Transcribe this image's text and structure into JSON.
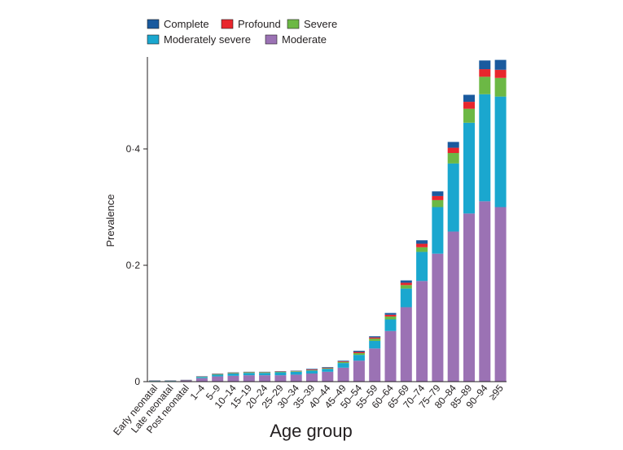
{
  "chart_data": {
    "type": "bar",
    "stacked": true,
    "xlabel": "Age group",
    "ylabel": "Prevalence",
    "ylim": [
      0,
      0.56
    ],
    "yticks": [
      0,
      0.2,
      0.4
    ],
    "ytick_labels": [
      "0",
      "0·2",
      "0·4"
    ],
    "legend_position": "top-left",
    "categories": [
      "Early neonatal",
      "Late neonatal",
      "Post neonatal",
      "1–4",
      "5–9",
      "10–14",
      "15–19",
      "20–24",
      "25–29",
      "30–34",
      "35–39",
      "40–44",
      "45–49",
      "50–54",
      "55–59",
      "60–64",
      "65–69",
      "70–74",
      "75–79",
      "80–84",
      "85–89",
      "90–94",
      "≥95"
    ],
    "series": [
      {
        "name": "Moderate",
        "color": "#9b72b4",
        "values": [
          0.001,
          0.001,
          0.002,
          0.006,
          0.009,
          0.01,
          0.011,
          0.011,
          0.011,
          0.012,
          0.014,
          0.017,
          0.024,
          0.036,
          0.057,
          0.087,
          0.128,
          0.173,
          0.22,
          0.258,
          0.289,
          0.31,
          0.3
        ]
      },
      {
        "name": "Moderately severe",
        "color": "#1aa7cf",
        "values": [
          0.0005,
          0.0005,
          0.0005,
          0.002,
          0.003,
          0.004,
          0.004,
          0.004,
          0.005,
          0.005,
          0.005,
          0.005,
          0.008,
          0.01,
          0.013,
          0.02,
          0.032,
          0.05,
          0.08,
          0.117,
          0.156,
          0.184,
          0.19
        ]
      },
      {
        "name": "Severe",
        "color": "#6cb845",
        "values": [
          0.0002,
          0.0002,
          0.0002,
          0.0005,
          0.001,
          0.001,
          0.001,
          0.001,
          0.001,
          0.001,
          0.001,
          0.001,
          0.002,
          0.003,
          0.004,
          0.005,
          0.006,
          0.008,
          0.012,
          0.018,
          0.024,
          0.03,
          0.032
        ]
      },
      {
        "name": "Profound",
        "color": "#e8262d",
        "values": [
          0.0002,
          0.0002,
          0.0002,
          0.0003,
          0.0005,
          0.0005,
          0.0005,
          0.0005,
          0.0005,
          0.0005,
          0.001,
          0.001,
          0.001,
          0.002,
          0.002,
          0.003,
          0.004,
          0.006,
          0.007,
          0.009,
          0.012,
          0.013,
          0.014
        ]
      },
      {
        "name": "Complete",
        "color": "#1a5a9e",
        "values": [
          0.0001,
          0.0001,
          0.0001,
          0.0005,
          0.0005,
          0.0005,
          0.0005,
          0.0005,
          0.0005,
          0.0005,
          0.001,
          0.001,
          0.001,
          0.002,
          0.002,
          0.003,
          0.004,
          0.006,
          0.008,
          0.01,
          0.012,
          0.015,
          0.017
        ]
      }
    ],
    "legend_order": [
      "Complete",
      "Profound",
      "Severe",
      "Moderately severe",
      "Moderate"
    ]
  }
}
